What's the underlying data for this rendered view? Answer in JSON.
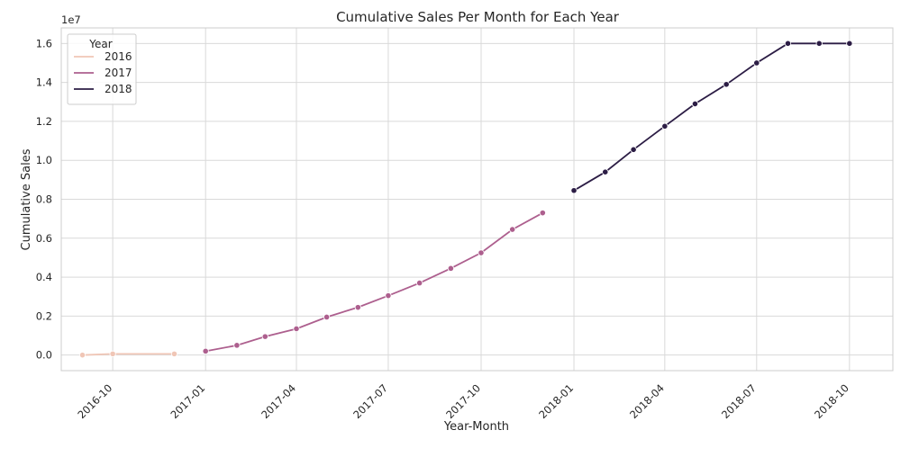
{
  "chart_data": {
    "type": "line",
    "title": "Cumulative Sales Per Month for Each Year",
    "xlabel": "Year-Month",
    "ylabel": "Cumulative Sales",
    "y_multiplier_label": "1e7",
    "y_scale_factor": 10000000,
    "ylim": [
      -0.08,
      1.68
    ],
    "xlim": [
      "2016-08-11",
      "2018-11-13"
    ],
    "y_ticks": [
      0.0,
      0.2,
      0.4,
      0.6,
      0.8,
      1.0,
      1.2,
      1.4,
      1.6
    ],
    "x_ticks": [
      "2016-10",
      "2017-01",
      "2017-04",
      "2017-07",
      "2017-10",
      "2018-01",
      "2018-04",
      "2018-07",
      "2018-10"
    ],
    "grid": true,
    "legend": {
      "title": "Year",
      "position": "top-left"
    },
    "series": [
      {
        "name": "2016",
        "color": "#f0c6b6",
        "x": [
          "2016-09",
          "2016-10",
          "2016-12"
        ],
        "y": [
          0.0,
          0.006,
          0.006
        ]
      },
      {
        "name": "2017",
        "color": "#ad5f8e",
        "x": [
          "2017-01",
          "2017-02",
          "2017-03",
          "2017-04",
          "2017-05",
          "2017-06",
          "2017-07",
          "2017-08",
          "2017-09",
          "2017-10",
          "2017-11",
          "2017-12"
        ],
        "y": [
          0.02,
          0.05,
          0.095,
          0.135,
          0.195,
          0.245,
          0.305,
          0.37,
          0.445,
          0.525,
          0.645,
          0.73
        ]
      },
      {
        "name": "2018",
        "color": "#2c1d45",
        "x": [
          "2018-01",
          "2018-02",
          "2018-03",
          "2018-04",
          "2018-05",
          "2018-06",
          "2018-07",
          "2018-08",
          "2018-09",
          "2018-10"
        ],
        "y": [
          0.845,
          0.94,
          1.055,
          1.175,
          1.29,
          1.39,
          1.5,
          1.6,
          1.6,
          1.6
        ]
      }
    ]
  }
}
